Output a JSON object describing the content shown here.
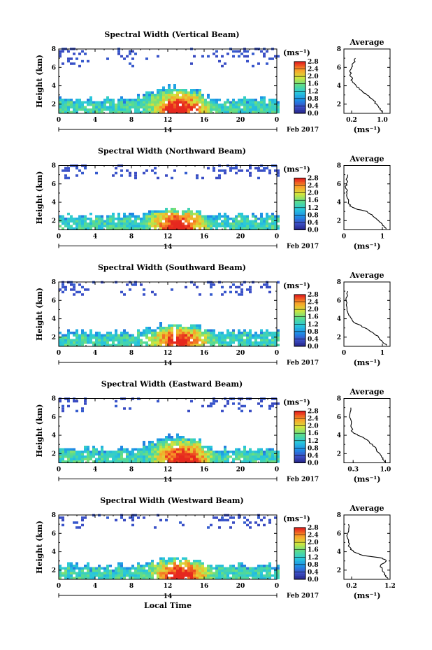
{
  "chart_data": [
    {
      "type": "heatmap",
      "title": "Spectral Width (Vertical Beam)",
      "ylabel": "Height (km)",
      "xticks": [
        "0",
        "4",
        "8",
        "12",
        "16",
        "20",
        "0"
      ],
      "yticks": [
        "2",
        "4",
        "6",
        "8"
      ],
      "xlim": [
        0,
        24
      ],
      "ylim": [
        1,
        8
      ],
      "date_day": "14",
      "date_month": "Feb 2017",
      "colorbar": {
        "unit": "(ms⁻¹)",
        "ticks": [
          "0.0",
          "0.4",
          "0.8",
          "1.2",
          "1.6",
          "2.0",
          "2.4",
          "2.8"
        ],
        "range": [
          0,
          2.8
        ]
      },
      "cloud": {
        "top": 3.6,
        "hotspot": 13.2,
        "upper_band": [
          6.0,
          8.0
        ]
      },
      "average": {
        "title": "Average",
        "xlabel": "(ms⁻¹)",
        "xticks": [
          "0.2",
          "1.0"
        ],
        "xlim": [
          0.0,
          1.2
        ],
        "yticks": [
          "2",
          "4",
          "6",
          "8"
        ],
        "profile": [
          [
            1.1,
            1.0
          ],
          [
            1.5,
            0.95
          ],
          [
            2,
            0.85
          ],
          [
            2.5,
            0.75
          ],
          [
            3,
            0.6
          ],
          [
            3.5,
            0.45
          ],
          [
            4,
            0.32
          ],
          [
            4.5,
            0.22
          ],
          [
            5,
            0.18
          ],
          [
            5.5,
            0.16
          ],
          [
            6,
            0.2
          ],
          [
            6.5,
            0.25
          ],
          [
            7,
            0.3
          ]
        ]
      }
    },
    {
      "type": "heatmap",
      "title": "Spectral Width (Northward Beam)",
      "ylabel": "Height (km)",
      "xticks": [
        "0",
        "4",
        "8",
        "12",
        "16",
        "20",
        "0"
      ],
      "yticks": [
        "2",
        "4",
        "6",
        "8"
      ],
      "xlim": [
        0,
        24
      ],
      "ylim": [
        1,
        8
      ],
      "date_day": "14",
      "date_month": "Feb 2017",
      "colorbar": {
        "unit": "(ms⁻¹)",
        "ticks": [
          "0.0",
          "0.4",
          "0.8",
          "1.2",
          "1.6",
          "2.0",
          "2.4",
          "2.8"
        ],
        "range": [
          0,
          2.8
        ]
      },
      "cloud": {
        "top": 3.0,
        "hotspot": 13.0,
        "upper_band": [
          6.5,
          8.0
        ]
      },
      "average": {
        "title": "Average",
        "xlabel": "(ms⁻¹)",
        "xticks": [
          "0",
          "1"
        ],
        "xlim": [
          0.0,
          1.2
        ],
        "yticks": [
          "2",
          "4",
          "6",
          "8"
        ],
        "profile": [
          [
            1.1,
            1.1
          ],
          [
            1.5,
            1.0
          ],
          [
            2,
            0.9
          ],
          [
            2.5,
            0.75
          ],
          [
            3,
            0.6
          ],
          [
            3.3,
            0.3
          ],
          [
            3.6,
            0.15
          ],
          [
            4,
            0.12
          ],
          [
            5,
            0.08
          ],
          [
            5.5,
            0.05
          ],
          [
            6,
            0.06
          ],
          [
            7,
            0.1
          ]
        ]
      }
    },
    {
      "type": "heatmap",
      "title": "Spectral Width (Southward Beam)",
      "ylabel": "Height (km)",
      "xticks": [
        "0",
        "4",
        "8",
        "12",
        "16",
        "20",
        "0"
      ],
      "yticks": [
        "2",
        "4",
        "6",
        "8"
      ],
      "xlim": [
        0,
        24
      ],
      "ylim": [
        1,
        8
      ],
      "date_day": "14",
      "date_month": "Feb 2017",
      "colorbar": {
        "unit": "(ms⁻¹)",
        "ticks": [
          "0.0",
          "0.4",
          "0.8",
          "1.2",
          "1.6",
          "2.0",
          "2.4",
          "2.8"
        ],
        "range": [
          0,
          2.8
        ]
      },
      "cloud": {
        "top": 3.2,
        "hotspot": 13.2,
        "upper_band": [
          6.5,
          8.0
        ]
      },
      "average": {
        "title": "Average",
        "xlabel": "(ms⁻¹)",
        "xticks": [
          "0",
          "1"
        ],
        "xlim": [
          0.0,
          1.2
        ],
        "yticks": [
          "2",
          "4",
          "6",
          "8"
        ],
        "profile": [
          [
            1.1,
            1.1
          ],
          [
            1.5,
            1.0
          ],
          [
            2,
            0.9
          ],
          [
            2.5,
            0.75
          ],
          [
            3,
            0.55
          ],
          [
            3.5,
            0.3
          ],
          [
            4,
            0.2
          ],
          [
            4.5,
            0.12
          ],
          [
            5,
            0.08
          ],
          [
            6,
            0.05
          ],
          [
            7,
            0.1
          ]
        ]
      }
    },
    {
      "type": "heatmap",
      "title": "Spectral Width (Eastward Beam)",
      "ylabel": "Height (km)",
      "xticks": [
        "0",
        "4",
        "8",
        "12",
        "16",
        "20",
        "0"
      ],
      "yticks": [
        "2",
        "4",
        "6",
        "8"
      ],
      "xlim": [
        0,
        24
      ],
      "ylim": [
        1,
        8
      ],
      "date_day": "14",
      "date_month": "Feb 2017",
      "colorbar": {
        "unit": "(ms⁻¹)",
        "ticks": [
          "0.0",
          "0.4",
          "0.8",
          "1.2",
          "1.6",
          "2.0",
          "2.4",
          "2.8"
        ],
        "range": [
          0,
          2.8
        ]
      },
      "cloud": {
        "top": 3.6,
        "hotspot": 13.5,
        "upper_band": [
          6.5,
          8.0
        ]
      },
      "average": {
        "title": "Average",
        "xlabel": "(ms⁻¹)",
        "xticks": [
          "0.3",
          "1.0"
        ],
        "xlim": [
          0.1,
          1.1
        ],
        "yticks": [
          "2",
          "4",
          "6",
          "8"
        ],
        "profile": [
          [
            1.1,
            1.0
          ],
          [
            1.5,
            0.95
          ],
          [
            2,
            0.88
          ],
          [
            2.5,
            0.8
          ],
          [
            3,
            0.72
          ],
          [
            3.5,
            0.6
          ],
          [
            4,
            0.4
          ],
          [
            4.3,
            0.3
          ],
          [
            5,
            0.25
          ],
          [
            6,
            0.22
          ],
          [
            7,
            0.25
          ]
        ]
      }
    },
    {
      "type": "heatmap",
      "title": "Spectral Width (Westward Beam)",
      "ylabel": "Height (km)",
      "xlabel": "Local Time",
      "xticks": [
        "0",
        "4",
        "8",
        "12",
        "16",
        "20",
        "0"
      ],
      "yticks": [
        "2",
        "4",
        "6",
        "8"
      ],
      "xlim": [
        0,
        24
      ],
      "ylim": [
        1,
        8
      ],
      "date_day": "14",
      "date_month": "Feb 2017",
      "colorbar": {
        "unit": "(ms⁻¹)",
        "ticks": [
          "0.0",
          "0.4",
          "0.8",
          "1.2",
          "1.6",
          "2.0",
          "2.4",
          "2.8"
        ],
        "range": [
          0,
          2.8
        ]
      },
      "cloud": {
        "top": 3.0,
        "hotspot": 13.2,
        "upper_band": [
          6.5,
          8.0
        ]
      },
      "average": {
        "title": "Average",
        "xlabel": "(ms⁻¹)",
        "xticks": [
          "0.2",
          "1.2"
        ],
        "xlim": [
          0.0,
          1.2
        ],
        "yticks": [
          "2",
          "4",
          "6",
          "8"
        ],
        "profile": [
          [
            1.1,
            1.15
          ],
          [
            1.5,
            1.05
          ],
          [
            2,
            1.0
          ],
          [
            2.5,
            0.95
          ],
          [
            3,
            1.1
          ],
          [
            3.3,
            1.0
          ],
          [
            3.6,
            0.5
          ],
          [
            4,
            0.25
          ],
          [
            4.5,
            0.15
          ],
          [
            5,
            0.12
          ],
          [
            6,
            0.1
          ],
          [
            7,
            0.12
          ]
        ]
      }
    }
  ]
}
